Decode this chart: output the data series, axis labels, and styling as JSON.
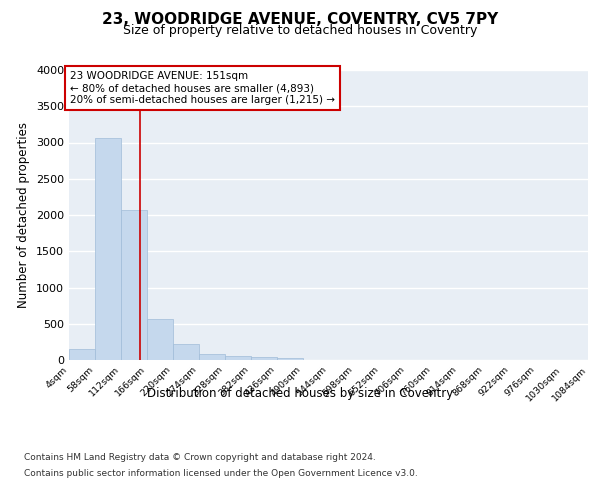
{
  "title": "23, WOODRIDGE AVENUE, COVENTRY, CV5 7PY",
  "subtitle": "Size of property relative to detached houses in Coventry",
  "xlabel": "Distribution of detached houses by size in Coventry",
  "ylabel": "Number of detached properties",
  "bar_edges": [
    4,
    58,
    112,
    166,
    220,
    274,
    328,
    382,
    436,
    490,
    544,
    598,
    652,
    706,
    760,
    814,
    868,
    922,
    976,
    1030,
    1084
  ],
  "bar_heights": [
    150,
    3060,
    2070,
    570,
    215,
    80,
    50,
    35,
    30,
    0,
    0,
    0,
    0,
    0,
    0,
    0,
    0,
    0,
    0,
    0
  ],
  "bar_color": "#c5d8ed",
  "bar_edge_color": "#a0bcd8",
  "vline_x": 151,
  "vline_color": "#cc0000",
  "annotation_title": "23 WOODRIDGE AVENUE: 151sqm",
  "annotation_line1": "← 80% of detached houses are smaller (4,893)",
  "annotation_line2": "20% of semi-detached houses are larger (1,215) →",
  "annotation_box_color": "#ffffff",
  "annotation_box_edge": "#cc0000",
  "ylim": [
    0,
    4000
  ],
  "yticks": [
    0,
    500,
    1000,
    1500,
    2000,
    2500,
    3000,
    3500,
    4000
  ],
  "background_color": "#e8eef5",
  "grid_color": "#ffffff",
  "footer_line1": "Contains HM Land Registry data © Crown copyright and database right 2024.",
  "footer_line2": "Contains public sector information licensed under the Open Government Licence v3.0."
}
